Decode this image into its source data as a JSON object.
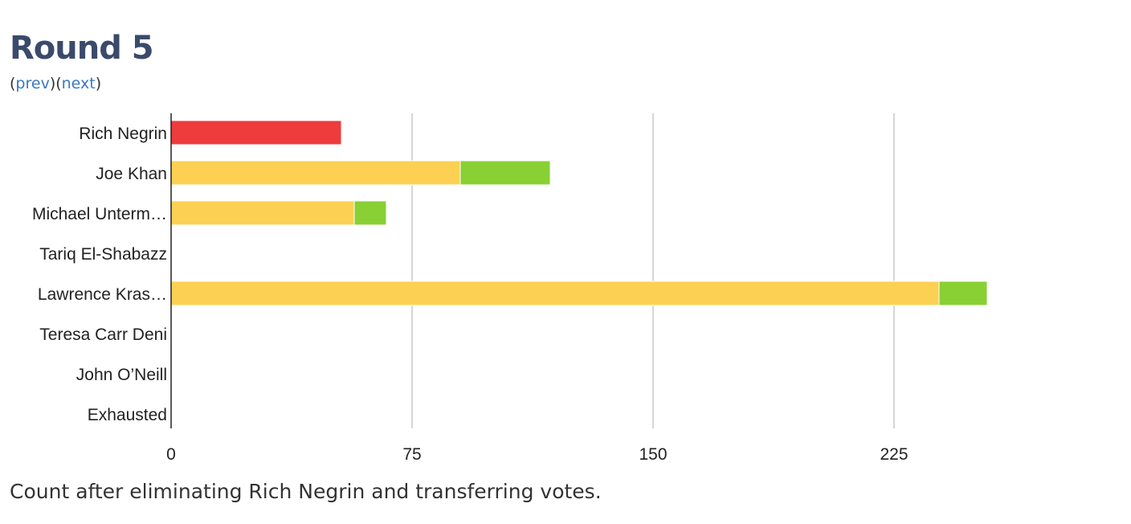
{
  "page": {
    "title": "Round 5",
    "nav": {
      "open": "(",
      "prev_label": "prev",
      "middle": ")(",
      "next_label": "next",
      "close": ")"
    },
    "caption": "Count after eliminating Rich Negrin and transferring votes."
  },
  "chart_data": {
    "type": "bar",
    "orientation": "horizontal",
    "stacked": true,
    "categories": [
      "Rich Negrin",
      "Joe Khan",
      "Michael Unterm…",
      "Tariq El-Shabazz",
      "Lawrence Kras…",
      "Teresa Carr Deni",
      "John O’Neill",
      "Exhausted"
    ],
    "series": [
      {
        "key": "prior",
        "color": "#fcd053",
        "values": [
          0,
          90,
          57,
          0,
          239,
          0,
          0,
          0
        ]
      },
      {
        "key": "transferred",
        "color": "#88d033",
        "values": [
          0,
          28,
          10,
          0,
          15,
          0,
          0,
          0
        ]
      },
      {
        "key": "eliminated",
        "color": "#ee3b3b",
        "values": [
          53,
          0,
          0,
          0,
          0,
          0,
          0,
          0
        ]
      }
    ],
    "xticks": [
      0,
      75,
      150,
      225
    ],
    "xlim": [
      0,
      285
    ],
    "grid": true
  }
}
